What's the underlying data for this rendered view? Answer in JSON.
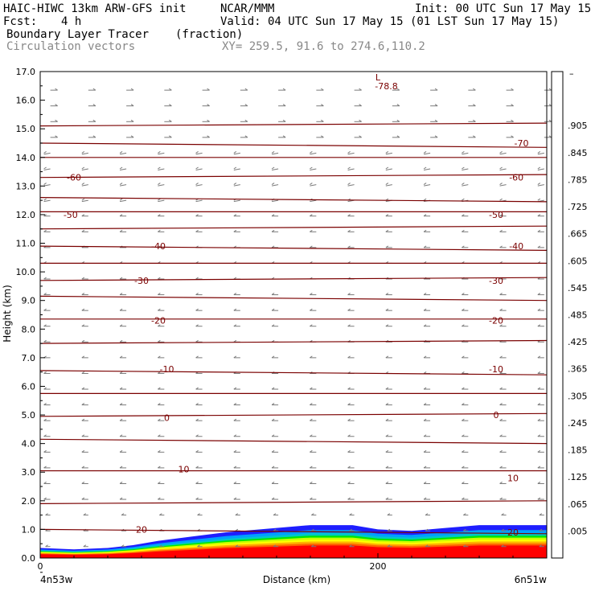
{
  "header": {
    "model": "HAIC-HIWC 13km ARW-GFS init",
    "org": "NCAR/MMM",
    "init": "Init: 00 UTC Sun 17 May 15",
    "fcst_label": "Fcst:",
    "fcst_value": "4 h",
    "valid": "Valid: 04 UTC Sun 17 May 15 (01 LST Sun 17 May 15)",
    "field1": "Boundary Layer Tracer",
    "field1_units": "(fraction)",
    "field2": "Circulation vectors",
    "xy": "XY= 259.5, 91.6 to 274.6,110.2"
  },
  "chart_data": {
    "type": "heatmap",
    "xlabel": "Distance (km)",
    "ylabel": "Height (km)",
    "xlim": [
      0,
      300
    ],
    "ylim": [
      0,
      17
    ],
    "x_ticks": [
      {
        "value": 0,
        "label": "0"
      },
      {
        "value": 200,
        "label": "200"
      }
    ],
    "x_endpoints": {
      "left": "4n53w",
      "right": "6n51w"
    },
    "y_ticks": [
      "0.0",
      "1.0",
      "2.0",
      "3.0",
      "4.0",
      "5.0",
      "6.0",
      "7.0",
      "8.0",
      "9.0",
      "10.0",
      "11.0",
      "12.0",
      "13.0",
      "14.0",
      "15.0",
      "16.0",
      "17.0"
    ],
    "colorbar": {
      "labels": [
        ".905",
        ".845",
        ".785",
        ".725",
        ".665",
        ".605",
        ".545",
        ".485",
        ".425",
        ".365",
        ".305",
        ".245",
        ".185",
        ".125",
        ".065",
        ".005"
      ],
      "colors": [
        "#ff0000",
        "#ff1e00",
        "#ff4000",
        "#ff6400",
        "#ff8c00",
        "#ffb000",
        "#ffd400",
        "#ffff00",
        "#ffff40",
        "#c8ff00",
        "#64ff00",
        "#00e600",
        "#00c864",
        "#00c8c8",
        "#00a0ff",
        "#1e1eff",
        "#0000c8",
        "#ffffff"
      ]
    },
    "temperature_contours": {
      "labels": [
        {
          "value": "-78.8",
          "x": 205,
          "y": 16.5
        },
        {
          "value": "L",
          "x": 200,
          "y": 16.8
        },
        {
          "value": "-70",
          "x": 285,
          "y": 14.5
        },
        {
          "value": "-60",
          "x": 20,
          "y": 13.3
        },
        {
          "value": "-60",
          "x": 282,
          "y": 13.3
        },
        {
          "value": "-50",
          "x": 18,
          "y": 12.0
        },
        {
          "value": "-50",
          "x": 270,
          "y": 12.0
        },
        {
          "value": "-40",
          "x": 70,
          "y": 10.9
        },
        {
          "value": "-40",
          "x": 282,
          "y": 10.9
        },
        {
          "value": "-30",
          "x": 60,
          "y": 9.7
        },
        {
          "value": "-30",
          "x": 270,
          "y": 9.7
        },
        {
          "value": "-20",
          "x": 70,
          "y": 8.3
        },
        {
          "value": "-20",
          "x": 270,
          "y": 8.3
        },
        {
          "value": "-10",
          "x": 75,
          "y": 6.6
        },
        {
          "value": "-10",
          "x": 270,
          "y": 6.6
        },
        {
          "value": "0",
          "x": 75,
          "y": 4.9
        },
        {
          "value": "0",
          "x": 270,
          "y": 5.0
        },
        {
          "value": "10",
          "x": 85,
          "y": 3.1
        },
        {
          "value": "10",
          "x": 280,
          "y": 2.8
        },
        {
          "value": "20",
          "x": 60,
          "y": 1.0
        },
        {
          "value": "20",
          "x": 280,
          "y": 0.9
        }
      ]
    }
  }
}
